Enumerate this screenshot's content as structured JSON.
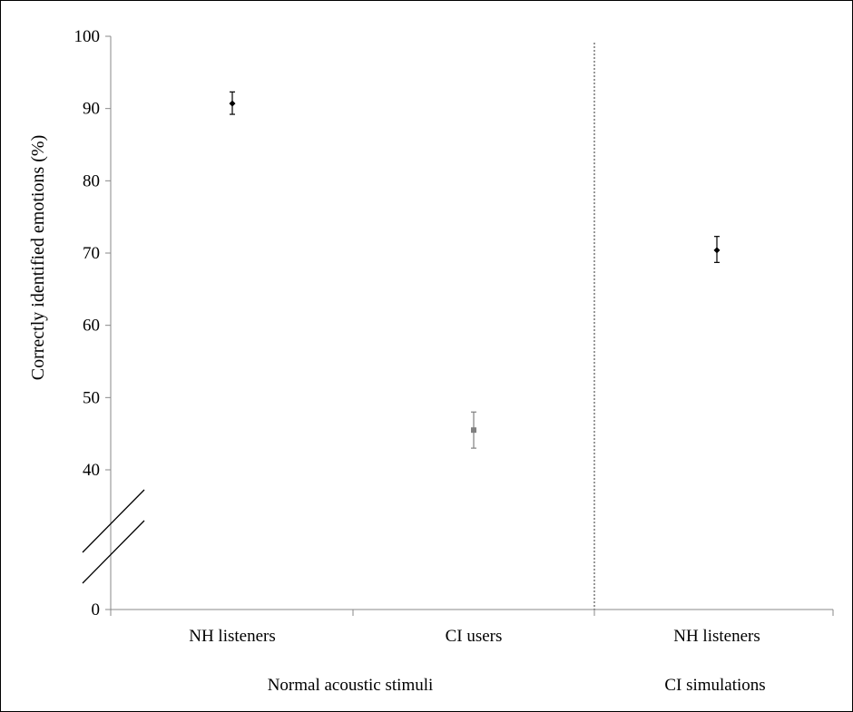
{
  "chart_data": {
    "type": "scatter",
    "title": "",
    "ylabel": "Correctly identified emotions (%)",
    "xlabel": "",
    "y_ticks": [
      "0",
      "40",
      "50",
      "60",
      "70",
      "80",
      "90",
      "100"
    ],
    "ylim": [
      0,
      100
    ],
    "axis_break": true,
    "grid": false,
    "legend": "none",
    "groups": [
      {
        "label": "Normal acoustic stimuli",
        "categories": [
          "NH listeners",
          "CI users"
        ]
      },
      {
        "label": "CI simulations",
        "categories": [
          "NH listeners"
        ]
      }
    ],
    "categories": [
      "NH listeners",
      "CI users",
      "NH listeners"
    ],
    "points": [
      {
        "category": "NH listeners",
        "group": "Normal acoustic stimuli",
        "value": 90.7,
        "error": [
          89.2,
          92.3
        ],
        "marker": "diamond",
        "color": "#000000"
      },
      {
        "category": "CI users",
        "group": "Normal acoustic stimuli",
        "value": 45.5,
        "error": [
          43.0,
          48.0
        ],
        "marker": "square",
        "color": "#808080"
      },
      {
        "category": "NH listeners",
        "group": "CI simulations",
        "value": 70.4,
        "error": [
          68.7,
          72.3
        ],
        "marker": "diamond",
        "color": "#000000"
      }
    ]
  }
}
